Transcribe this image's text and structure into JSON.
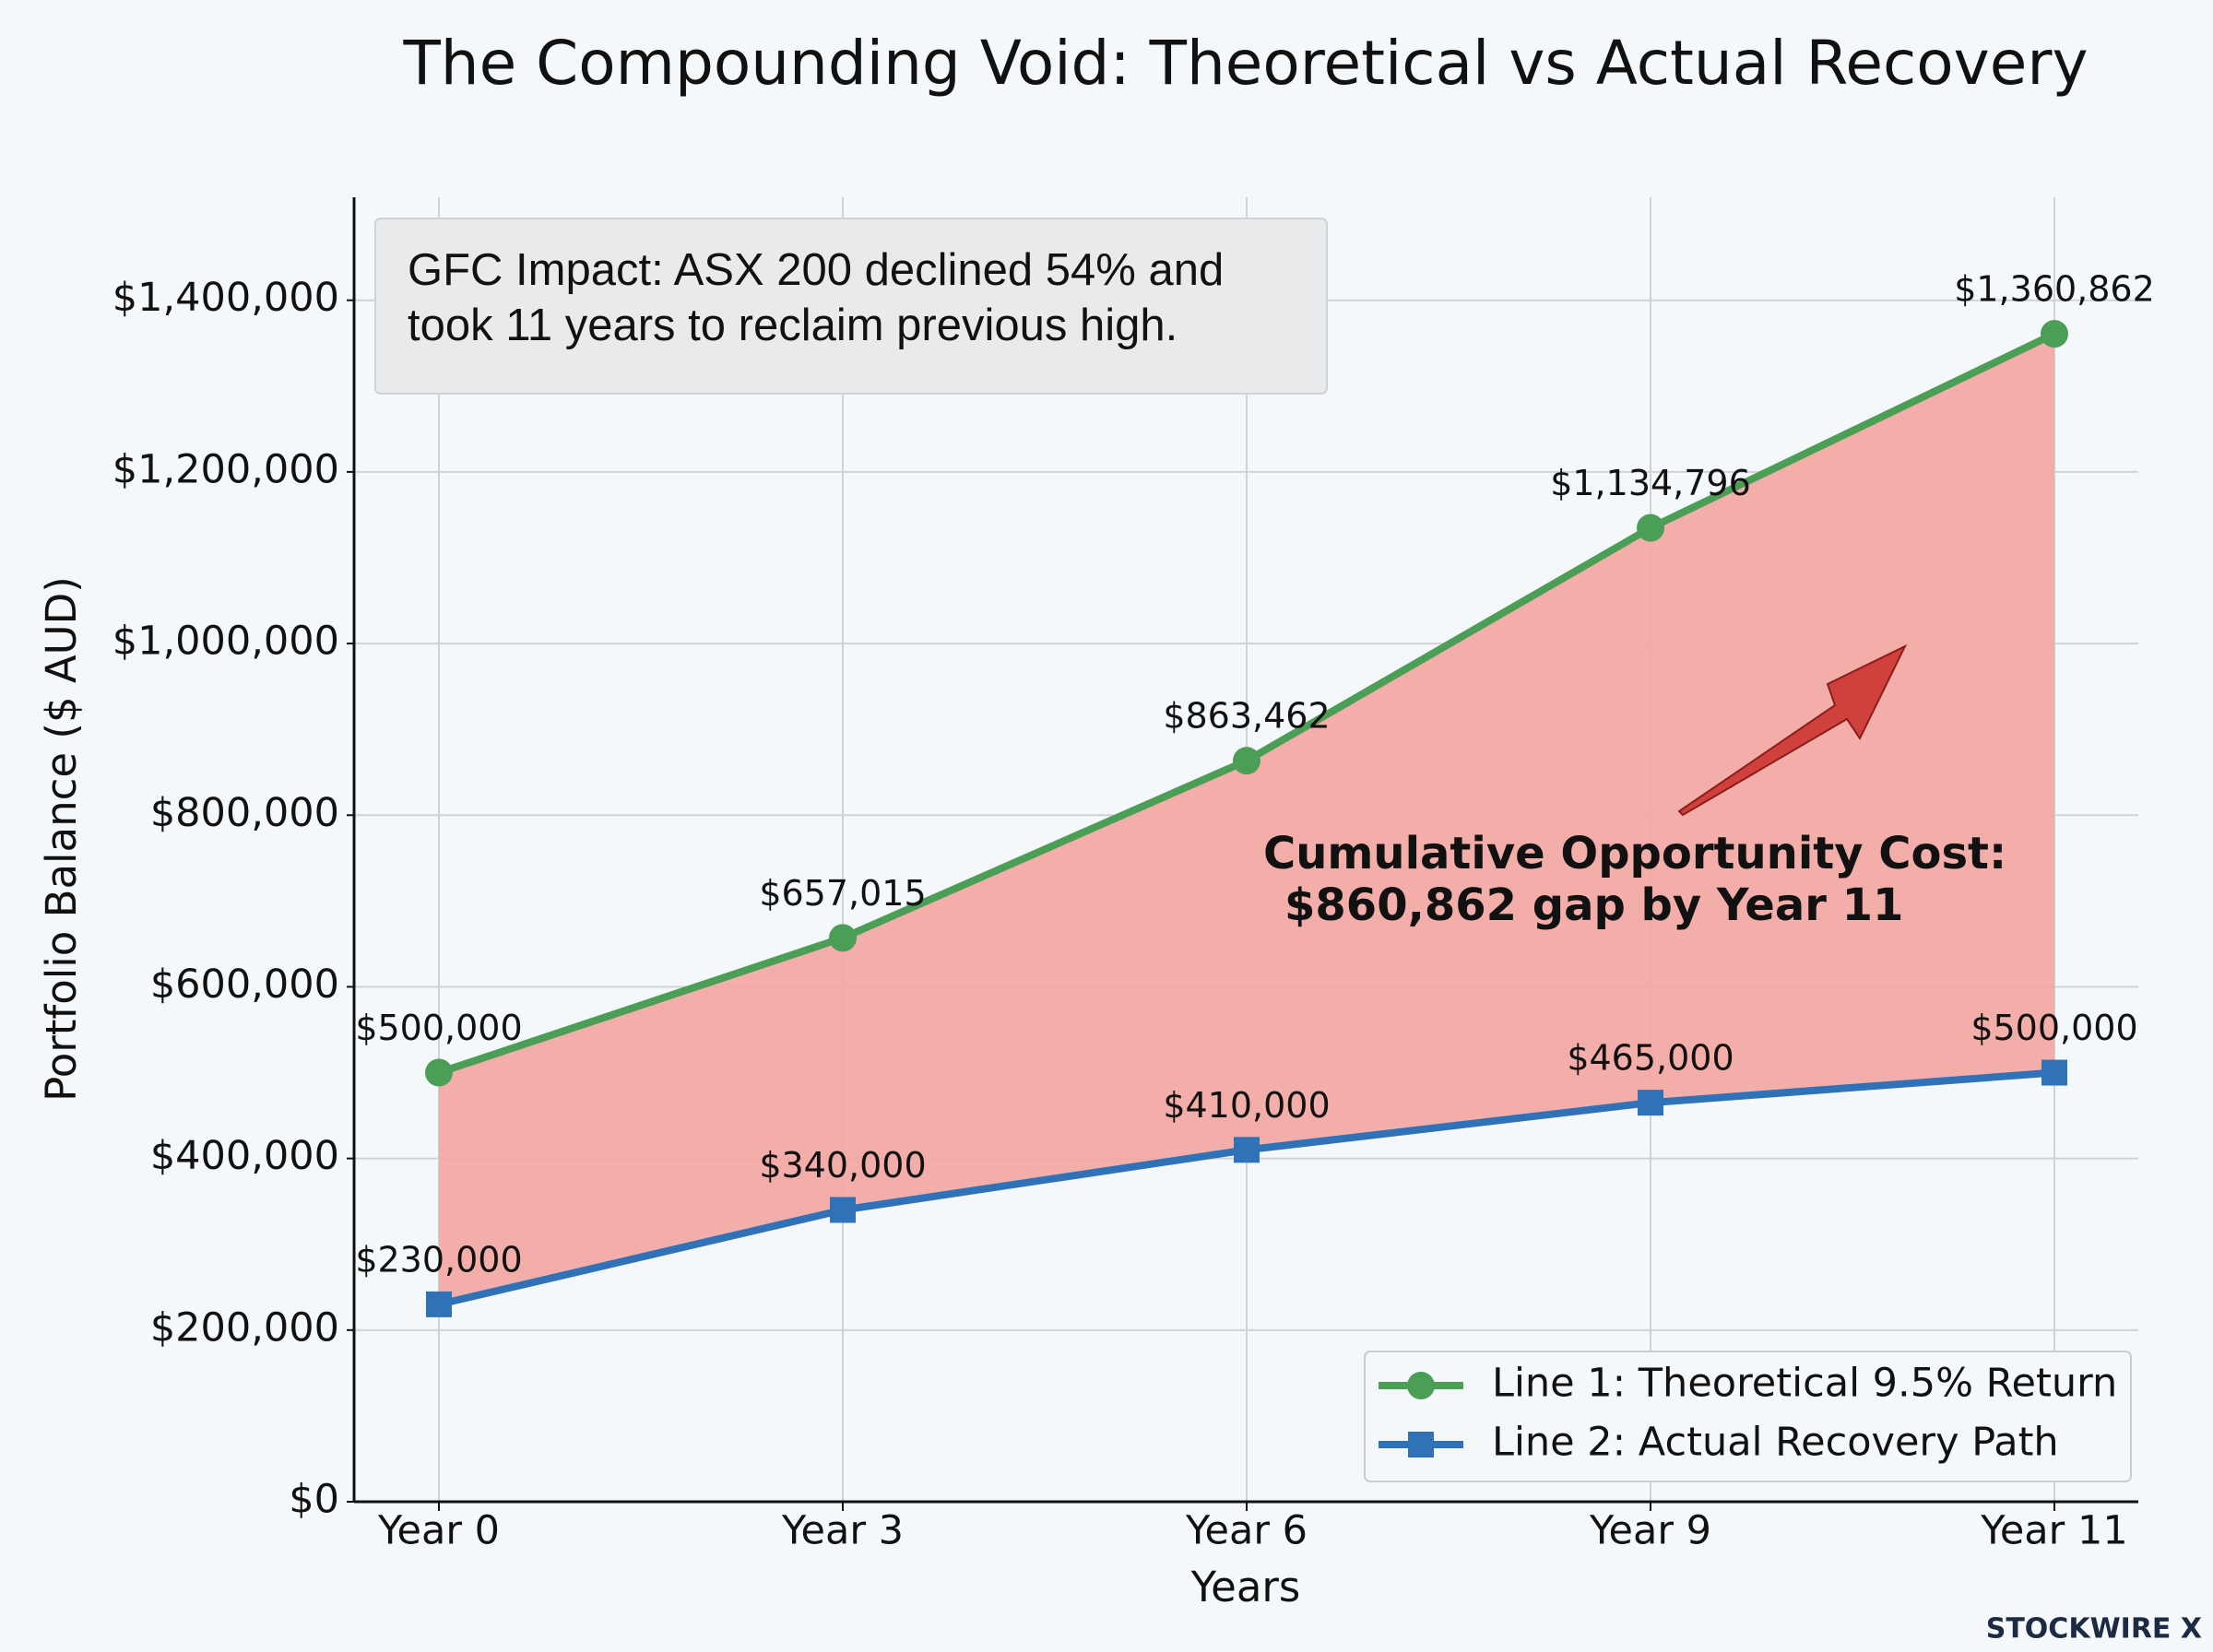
{
  "chart_data": {
    "type": "line",
    "title": "The Compounding Void: Theoretical vs Actual Recovery",
    "x_label": "Years",
    "y_label": "Portfolio Balance ($ AUD)",
    "categories": [
      "Year 0",
      "Year 3",
      "Year 6",
      "Year 9",
      "Year 11"
    ],
    "series": [
      {
        "name": "Line 1: Theoretical 9.5% Return",
        "color": "#4a9e55",
        "marker": "circle",
        "values": [
          500000,
          657015,
          863462,
          1134796,
          1360862
        ],
        "value_labels": [
          "$500,000",
          "$657,015",
          "$863,462",
          "$1,134,796",
          "$1,360,862"
        ]
      },
      {
        "name": "Line 2: Actual Recovery Path",
        "color": "#2f72b8",
        "marker": "square",
        "values": [
          230000,
          340000,
          410000,
          465000,
          500000
        ],
        "value_labels": [
          "$230,000",
          "$340,000",
          "$410,000",
          "$465,000",
          "$500,000"
        ]
      }
    ],
    "fill_between_color": "#f4a5a0",
    "ylim": [
      0,
      1520000
    ],
    "yticks": [
      {
        "value": 0,
        "label": "$0"
      },
      {
        "value": 200000,
        "label": "$200,000"
      },
      {
        "value": 400000,
        "label": "$400,000"
      },
      {
        "value": 600000,
        "label": "$600,000"
      },
      {
        "value": 800000,
        "label": "$800,000"
      },
      {
        "value": 1000000,
        "label": "$1,000,000"
      },
      {
        "value": 1200000,
        "label": "$1,200,000"
      },
      {
        "value": 1400000,
        "label": "$1,400,000"
      }
    ],
    "grid": true,
    "legend": "lower right",
    "annotations": {
      "box": [
        "GFC Impact: ASX 200 declined 54% and",
        "took 11 years to reclaim previous high."
      ],
      "callout": [
        "Cumulative Opportunity Cost:",
        "$860,862 gap by Year 11"
      ]
    },
    "watermark": "STOCKWIRE X"
  }
}
